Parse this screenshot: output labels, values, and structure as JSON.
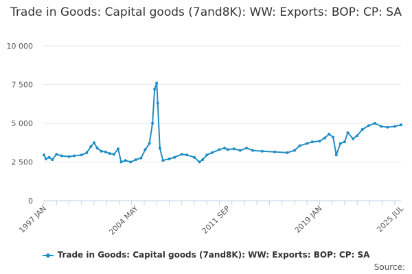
{
  "title": "Trade in Goods: Capital goods (7and8K): WW: Exports: BOP: CP: SA",
  "credits": "Source:",
  "colors": {
    "series": "#1f8dc4",
    "grid": "#e6e6e6",
    "axis": "#c0d0e0"
  },
  "chart_data": {
    "type": "line",
    "title": "Trade in Goods: Capital goods (7and8K): WW: Exports: BOP: CP: SA",
    "xlabel": "",
    "ylabel": "",
    "x_range": [
      "1997 JAN",
      "2025 JUL"
    ],
    "ylim": [
      0,
      10000
    ],
    "y_ticks": [
      0,
      2500,
      5000,
      7500,
      10000
    ],
    "y_tick_labels": [
      "0",
      "2 500",
      "5 000",
      "7 500",
      "10 000"
    ],
    "x_tick_labels": [
      "1997 JAN",
      "2004 MAY",
      "2011 SEP",
      "2019 JAN",
      "2025 JUL"
    ],
    "grid": true,
    "legend": "bottom",
    "series": [
      {
        "name": "Trade in Goods: Capital goods (7and8K): WW: Exports: BOP: CP: SA",
        "points": [
          [
            "1997-01",
            2950
          ],
          [
            "1997-03",
            2700
          ],
          [
            "1997-06",
            2800
          ],
          [
            "1997-09",
            2650
          ],
          [
            "1998-01",
            3000
          ],
          [
            "1998-06",
            2900
          ],
          [
            "1999-01",
            2850
          ],
          [
            "1999-06",
            2900
          ],
          [
            "2000-01",
            2950
          ],
          [
            "2000-06",
            3100
          ],
          [
            "2000-10",
            3500
          ],
          [
            "2001-01",
            3750
          ],
          [
            "2001-04",
            3400
          ],
          [
            "2001-08",
            3200
          ],
          [
            "2001-12",
            3150
          ],
          [
            "2002-04",
            3050
          ],
          [
            "2002-08",
            3000
          ],
          [
            "2002-12",
            3350
          ],
          [
            "2003-03",
            2500
          ],
          [
            "2003-07",
            2600
          ],
          [
            "2003-12",
            2500
          ],
          [
            "2004-05",
            2650
          ],
          [
            "2004-10",
            2750
          ],
          [
            "2005-02",
            3300
          ],
          [
            "2005-06",
            3700
          ],
          [
            "2005-09",
            5000
          ],
          [
            "2005-11",
            7200
          ],
          [
            "2006-01",
            7600
          ],
          [
            "2006-02",
            6300
          ],
          [
            "2006-04",
            3400
          ],
          [
            "2006-07",
            2600
          ],
          [
            "2007-01",
            2700
          ],
          [
            "2007-06",
            2800
          ],
          [
            "2008-01",
            3000
          ],
          [
            "2008-06",
            2950
          ],
          [
            "2009-01",
            2800
          ],
          [
            "2009-06",
            2500
          ],
          [
            "2009-09",
            2650
          ],
          [
            "2010-01",
            2950
          ],
          [
            "2010-06",
            3100
          ],
          [
            "2011-01",
            3300
          ],
          [
            "2011-06",
            3400
          ],
          [
            "2011-09",
            3300
          ],
          [
            "2012-03",
            3350
          ],
          [
            "2012-09",
            3250
          ],
          [
            "2013-03",
            3400
          ],
          [
            "2013-09",
            3250
          ],
          [
            "2014-06",
            3200
          ],
          [
            "2015-06",
            3150
          ],
          [
            "2016-06",
            3100
          ],
          [
            "2017-01",
            3250
          ],
          [
            "2017-06",
            3550
          ],
          [
            "2018-01",
            3700
          ],
          [
            "2018-06",
            3800
          ],
          [
            "2019-01",
            3850
          ],
          [
            "2019-06",
            4050
          ],
          [
            "2019-10",
            4300
          ],
          [
            "2020-02",
            4100
          ],
          [
            "2020-05",
            2950
          ],
          [
            "2020-09",
            3700
          ],
          [
            "2021-01",
            3800
          ],
          [
            "2021-04",
            4400
          ],
          [
            "2021-09",
            4000
          ],
          [
            "2022-01",
            4200
          ],
          [
            "2022-06",
            4600
          ],
          [
            "2022-12",
            4850
          ],
          [
            "2023-06",
            5000
          ],
          [
            "2023-12",
            4800
          ],
          [
            "2024-06",
            4750
          ],
          [
            "2025-01",
            4800
          ],
          [
            "2025-07",
            4900
          ]
        ]
      }
    ]
  }
}
